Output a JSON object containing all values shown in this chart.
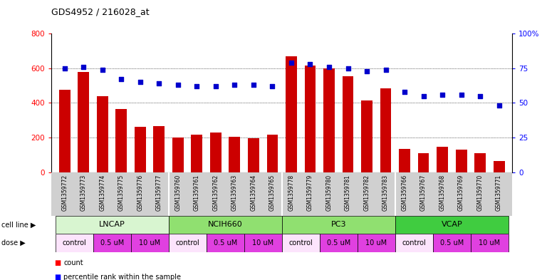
{
  "title": "GDS4952 / 216028_at",
  "samples": [
    "GSM1359772",
    "GSM1359773",
    "GSM1359774",
    "GSM1359775",
    "GSM1359776",
    "GSM1359777",
    "GSM1359760",
    "GSM1359761",
    "GSM1359762",
    "GSM1359763",
    "GSM1359764",
    "GSM1359765",
    "GSM1359778",
    "GSM1359779",
    "GSM1359780",
    "GSM1359781",
    "GSM1359782",
    "GSM1359783",
    "GSM1359766",
    "GSM1359767",
    "GSM1359768",
    "GSM1359769",
    "GSM1359770",
    "GSM1359771"
  ],
  "counts": [
    475,
    580,
    440,
    365,
    260,
    265,
    200,
    215,
    230,
    205,
    195,
    215,
    670,
    615,
    600,
    555,
    415,
    485,
    135,
    110,
    145,
    130,
    110,
    65
  ],
  "percentiles": [
    75,
    76,
    74,
    67,
    65,
    64,
    63,
    62,
    62,
    63,
    63,
    62,
    79,
    78,
    76,
    75,
    73,
    74,
    58,
    55,
    56,
    56,
    55,
    48
  ],
  "cell_line_groups": [
    {
      "label": "LNCAP",
      "start": 0,
      "end": 6,
      "color": "#d8f5d0"
    },
    {
      "label": "NCIH660",
      "start": 6,
      "end": 12,
      "color": "#90e070"
    },
    {
      "label": "PC3",
      "start": 12,
      "end": 18,
      "color": "#90e070"
    },
    {
      "label": "VCAP",
      "start": 18,
      "end": 24,
      "color": "#40cc40"
    }
  ],
  "dose_groups": [
    {
      "label": "control",
      "start": 0,
      "end": 2,
      "color": "#fce4fc"
    },
    {
      "label": "0.5 uM",
      "start": 2,
      "end": 4,
      "color": "#e040e0"
    },
    {
      "label": "10 uM",
      "start": 4,
      "end": 6,
      "color": "#e040e0"
    },
    {
      "label": "control",
      "start": 6,
      "end": 8,
      "color": "#fce4fc"
    },
    {
      "label": "0.5 uM",
      "start": 8,
      "end": 10,
      "color": "#e040e0"
    },
    {
      "label": "10 uM",
      "start": 10,
      "end": 12,
      "color": "#e040e0"
    },
    {
      "label": "control",
      "start": 12,
      "end": 14,
      "color": "#fce4fc"
    },
    {
      "label": "0.5 uM",
      "start": 14,
      "end": 16,
      "color": "#e040e0"
    },
    {
      "label": "10 uM",
      "start": 16,
      "end": 18,
      "color": "#e040e0"
    },
    {
      "label": "control",
      "start": 18,
      "end": 20,
      "color": "#fce4fc"
    },
    {
      "label": "0.5 uM",
      "start": 20,
      "end": 22,
      "color": "#e040e0"
    },
    {
      "label": "10 uM",
      "start": 22,
      "end": 24,
      "color": "#e040e0"
    }
  ],
  "bar_color": "#cc0000",
  "dot_color": "#0000cc",
  "ylim_left": [
    0,
    800
  ],
  "ylim_right": [
    0,
    100
  ],
  "yticks_left": [
    0,
    200,
    400,
    600,
    800
  ],
  "yticks_right": [
    0,
    25,
    50,
    75,
    100
  ],
  "ytick_labels_right": [
    "0",
    "25",
    "50",
    "75",
    "100%"
  ],
  "grid_lines": [
    200,
    400,
    600
  ],
  "xtick_bg_color": "#d0d0d0",
  "plot_bg_color": "#ffffff"
}
